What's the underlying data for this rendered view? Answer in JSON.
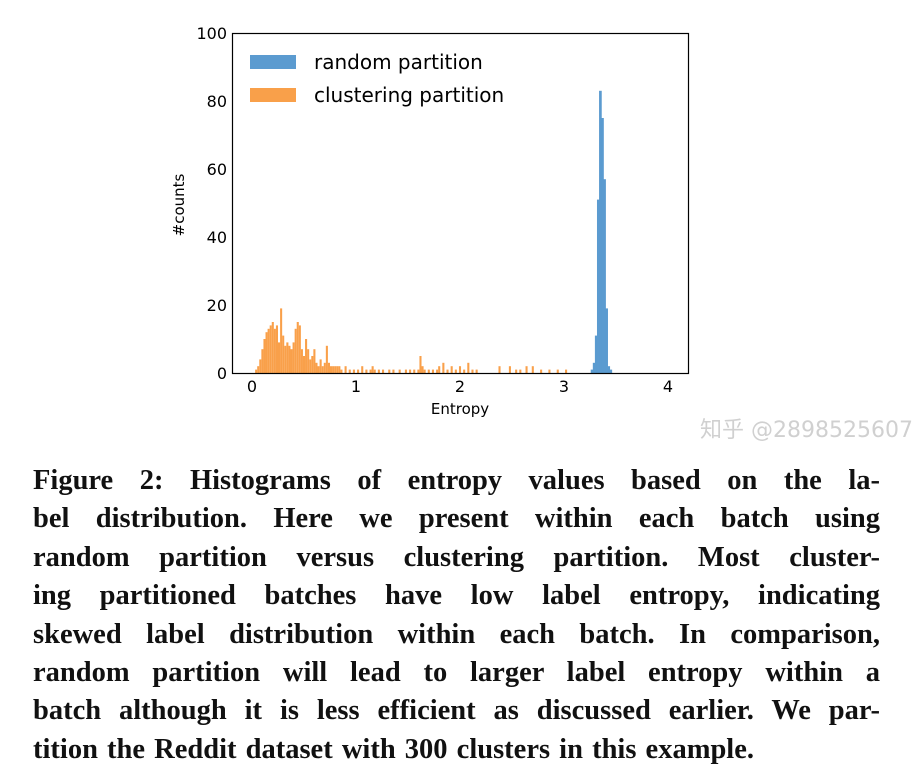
{
  "chart_data": {
    "type": "bar",
    "title": "",
    "xlabel": "Entropy",
    "ylabel": "#counts",
    "xlim": [
      -0.2,
      4.2
    ],
    "ylim": [
      0,
      100
    ],
    "xticks": [
      "0",
      "1",
      "2",
      "3",
      "4"
    ],
    "yticks": [
      "0",
      "20",
      "40",
      "60",
      "80",
      "100"
    ],
    "grid": false,
    "legend_position": "top-left",
    "bin_width": 0.02,
    "series": [
      {
        "name": "random partition",
        "color": "#5b9bd0",
        "bins": [
          [
            3.27,
            1
          ],
          [
            3.29,
            3
          ],
          [
            3.31,
            11
          ],
          [
            3.33,
            51
          ],
          [
            3.35,
            83
          ],
          [
            3.37,
            75
          ],
          [
            3.39,
            57
          ],
          [
            3.41,
            19
          ],
          [
            3.43,
            2
          ],
          [
            3.45,
            1
          ]
        ]
      },
      {
        "name": "clustering partition",
        "color": "#f9a04a",
        "bins": [
          [
            0.04,
            1
          ],
          [
            0.06,
            2
          ],
          [
            0.08,
            4
          ],
          [
            0.1,
            7
          ],
          [
            0.12,
            10
          ],
          [
            0.14,
            12
          ],
          [
            0.16,
            13
          ],
          [
            0.18,
            14
          ],
          [
            0.2,
            15
          ],
          [
            0.22,
            13
          ],
          [
            0.24,
            14
          ],
          [
            0.26,
            9
          ],
          [
            0.28,
            19
          ],
          [
            0.3,
            11
          ],
          [
            0.32,
            8
          ],
          [
            0.34,
            9
          ],
          [
            0.36,
            8
          ],
          [
            0.38,
            7
          ],
          [
            0.4,
            9
          ],
          [
            0.42,
            13
          ],
          [
            0.44,
            15
          ],
          [
            0.46,
            14
          ],
          [
            0.48,
            7
          ],
          [
            0.5,
            5
          ],
          [
            0.52,
            10
          ],
          [
            0.54,
            7
          ],
          [
            0.56,
            4
          ],
          [
            0.58,
            5
          ],
          [
            0.6,
            7
          ],
          [
            0.62,
            3
          ],
          [
            0.64,
            2
          ],
          [
            0.66,
            4
          ],
          [
            0.68,
            2
          ],
          [
            0.7,
            3
          ],
          [
            0.72,
            8
          ],
          [
            0.74,
            3
          ],
          [
            0.76,
            2
          ],
          [
            0.78,
            2
          ],
          [
            0.8,
            2
          ],
          [
            0.82,
            2
          ],
          [
            0.84,
            2
          ],
          [
            0.86,
            1
          ],
          [
            0.9,
            2
          ],
          [
            0.94,
            1
          ],
          [
            0.98,
            1
          ],
          [
            1.02,
            1
          ],
          [
            1.06,
            2
          ],
          [
            1.1,
            1
          ],
          [
            1.14,
            1
          ],
          [
            1.16,
            2
          ],
          [
            1.18,
            1
          ],
          [
            1.22,
            1
          ],
          [
            1.26,
            1
          ],
          [
            1.32,
            1
          ],
          [
            1.36,
            1
          ],
          [
            1.42,
            1
          ],
          [
            1.48,
            1
          ],
          [
            1.52,
            1
          ],
          [
            1.56,
            1
          ],
          [
            1.6,
            1
          ],
          [
            1.62,
            5
          ],
          [
            1.64,
            2
          ],
          [
            1.66,
            1
          ],
          [
            1.7,
            1
          ],
          [
            1.74,
            1
          ],
          [
            1.78,
            1
          ],
          [
            1.8,
            2
          ],
          [
            1.84,
            3
          ],
          [
            1.88,
            1
          ],
          [
            1.92,
            2
          ],
          [
            1.96,
            1
          ],
          [
            2.0,
            2
          ],
          [
            2.04,
            1
          ],
          [
            2.08,
            3
          ],
          [
            2.12,
            1
          ],
          [
            2.16,
            1
          ],
          [
            2.38,
            2
          ],
          [
            2.48,
            2
          ],
          [
            2.54,
            1
          ],
          [
            2.58,
            1
          ],
          [
            2.64,
            2
          ],
          [
            2.7,
            2
          ],
          [
            2.78,
            1
          ],
          [
            2.86,
            1
          ],
          [
            2.94,
            1
          ],
          [
            3.02,
            1
          ]
        ]
      }
    ]
  },
  "caption": {
    "lines": [
      "Figure 2: Histograms of entropy values based on the la-",
      "bel distribution. Here we present within each batch using",
      "random partition versus clustering partition. Most cluster-",
      "ing partitioned batches have low label entropy, indicating",
      "skewed label distribution within each batch. In comparison,",
      "random partition will lead to larger label entropy within a",
      "batch although it is less efficient as discussed earlier. We par-",
      "tition the Reddit dataset with 300 clusters in this example."
    ]
  },
  "watermark": "知乎 @2898525607"
}
